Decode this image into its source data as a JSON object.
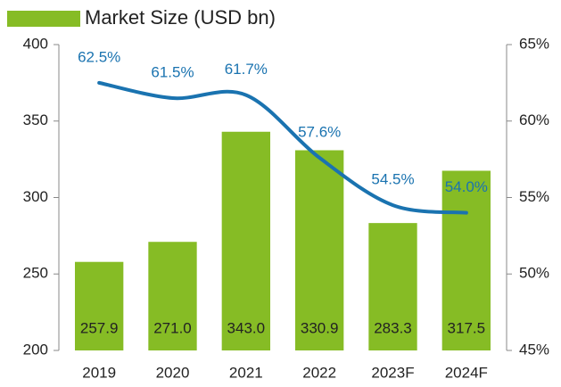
{
  "chart_data": {
    "type": "bar",
    "categories": [
      "2019",
      "2020",
      "2021",
      "2022",
      "2023F",
      "2024F"
    ],
    "series": [
      {
        "name": "Market Size (USD bn)",
        "color": "#86bc25",
        "values": [
          257.9,
          271.0,
          343.0,
          330.9,
          283.3,
          317.5
        ],
        "value_labels": [
          "257.9",
          "271.0",
          "343.0",
          "330.9",
          "283.3",
          "317.5"
        ]
      },
      {
        "type": "line",
        "axis": "y2",
        "color": "#1a73b0",
        "values": [
          62.5,
          61.5,
          61.7,
          57.6,
          54.5,
          54.0
        ],
        "value_labels": [
          "62.5%",
          "61.5%",
          "61.7%",
          "57.6%",
          "54.5%",
          "54.0%"
        ]
      }
    ],
    "ylim": [
      200,
      400
    ],
    "yticks": [
      200,
      250,
      300,
      350,
      400
    ],
    "y2lim": [
      45,
      65
    ],
    "y2ticks": [
      {
        "value": 45,
        "label": "45%"
      },
      {
        "value": 50,
        "label": "50%"
      },
      {
        "value": 55,
        "label": "55%"
      },
      {
        "value": 60,
        "label": "60%"
      },
      {
        "value": 65,
        "label": "65%"
      }
    ]
  }
}
